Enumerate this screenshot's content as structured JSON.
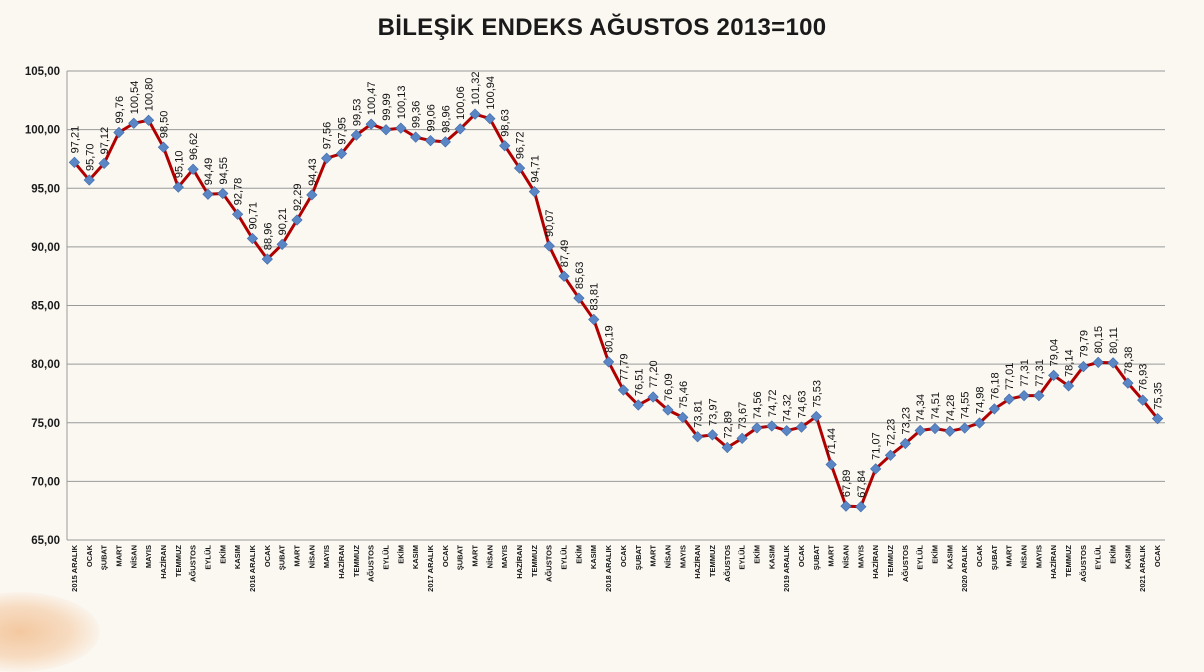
{
  "chart_data": {
    "type": "line",
    "title": "BİLEŞİK ENDEKS AĞUSTOS 2013=100",
    "xlabel": "",
    "ylabel": "",
    "ylim": [
      65,
      105
    ],
    "yticks": [
      "65,00",
      "70,00",
      "75,00",
      "80,00",
      "85,00",
      "90,00",
      "95,00",
      "100,00",
      "105,00"
    ],
    "grid": true,
    "legend": "none",
    "colors": {
      "line": "#b00000",
      "marker": "#5b86c5",
      "grid": "#9a9a9a"
    },
    "categories": [
      "2015 ARALIK",
      "OCAK",
      "ŞUBAT",
      "MART",
      "NİSAN",
      "MAYIS",
      "HAZİRAN",
      "TEMMUZ",
      "AĞUSTOS",
      "EYLÜL",
      "EKİM",
      "KASIM",
      "2016 ARALIK",
      "OCAK",
      "ŞUBAT",
      "MART",
      "NİSAN",
      "MAYIS",
      "HAZİRAN",
      "TEMMUZ",
      "AĞUSTOS",
      "EYLÜL",
      "EKİM",
      "KASIM",
      "2017 ARALIK",
      "OCAK",
      "ŞUBAT",
      "MART",
      "NİSAN",
      "MAYIS",
      "HAZİRAN",
      "TEMMUZ",
      "AĞUSTOS",
      "EYLÜL",
      "EKİM",
      "KASIM",
      "2018 ARALIK",
      "OCAK",
      "ŞUBAT",
      "MART",
      "NİSAN",
      "MAYIS",
      "HAZİRAN",
      "TEMMUZ",
      "AĞUSTOS",
      "EYLÜL",
      "EKİM",
      "KASIM",
      "2019 ARALIK",
      "OCAK",
      "ŞUBAT",
      "MART",
      "NİSAN",
      "MAYIS",
      "HAZİRAN",
      "TEMMUZ",
      "AĞUSTOS",
      "EYLÜL",
      "EKİM",
      "KASIM",
      "2020 ARALIK",
      "OCAK",
      "ŞUBAT",
      "MART",
      "NİSAN",
      "MAYIS",
      "HAZİRAN",
      "TEMMUZ",
      "AĞUSTOS",
      "EYLÜL",
      "EKİM",
      "KASIM",
      "2021 ARALIK",
      "OCAK"
    ],
    "values": [
      97.21,
      95.7,
      97.12,
      99.76,
      100.54,
      100.8,
      98.5,
      95.1,
      96.62,
      94.49,
      94.55,
      92.78,
      90.71,
      88.96,
      90.21,
      92.29,
      94.43,
      97.56,
      97.95,
      99.53,
      100.47,
      99.99,
      100.13,
      99.36,
      99.06,
      98.96,
      100.06,
      101.32,
      100.94,
      98.63,
      96.72,
      94.71,
      90.07,
      87.49,
      85.63,
      83.81,
      80.19,
      77.79,
      76.51,
      77.2,
      76.09,
      75.46,
      73.81,
      73.97,
      72.89,
      73.67,
      74.56,
      74.72,
      74.32,
      74.63,
      75.53,
      71.44,
      67.89,
      67.84,
      71.07,
      72.23,
      73.23,
      74.34,
      74.51,
      74.28,
      74.55,
      74.98,
      76.18,
      77.01,
      77.31,
      77.31,
      79.04,
      78.14,
      79.79,
      80.15,
      80.11,
      78.38,
      76.93,
      75.35
    ],
    "data_labels": [
      "97,21",
      "95,70",
      "97,12",
      "99,76",
      "100,54",
      "100,80",
      "98,50",
      "95,10",
      "96,62",
      "94,49",
      "94,55",
      "92,78",
      "90,71",
      "88,96",
      "90,21",
      "92,29",
      "94,43",
      "97,56",
      "97,95",
      "99,53",
      "100,47",
      "99,99",
      "100,13",
      "99,36",
      "99,06",
      "98,96",
      "100,06",
      "101,32",
      "100,94",
      "98,63",
      "96,72",
      "94,71",
      "90,07",
      "87,49",
      "85,63",
      "83,81",
      "80,19",
      "77,79",
      "76,51",
      "77,20",
      "76,09",
      "75,46",
      "73,81",
      "73,97",
      "72,89",
      "73,67",
      "74,56",
      "74,72",
      "74,32",
      "74,63",
      "75,53",
      "71,44",
      "67,89",
      "67,84",
      "71,07",
      "72,23",
      "73,23",
      "74,34",
      "74,51",
      "74,28",
      "74,55",
      "74,98",
      "76,18",
      "77,01",
      "77,31",
      "77,31",
      "79,04",
      "78,14",
      "79,79",
      "80,15",
      "80,11",
      "78,38",
      "76,93",
      "75,35"
    ]
  }
}
